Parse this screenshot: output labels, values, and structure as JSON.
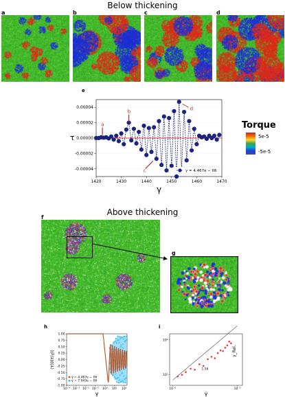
{
  "headings": {
    "below": "Below thickening",
    "above": "Above thickening"
  },
  "panel_labels": {
    "a": "a",
    "b": "b",
    "c": "c",
    "d": "d",
    "e": "e",
    "f": "f",
    "g": "g",
    "h": "h",
    "i": "i"
  },
  "colors": {
    "green": "#3cbf2a",
    "red": "#e02a1a",
    "blue": "#1e2fd8",
    "navy": "#1a237e",
    "orange": "#e87722",
    "cyan": "#29b6f6"
  },
  "colorbar": {
    "title": "Torque",
    "max_label": "5e-5",
    "min_label": "-5e-5"
  },
  "chart_data": [
    {
      "id": "e",
      "type": "line",
      "xlabel": "γ",
      "ylabel": "τ",
      "xlim": [
        1420,
        1470
      ],
      "ylim": [
        -5e-05,
        5e-05
      ],
      "xticks": [
        "1420",
        "1430",
        "1440",
        "1450",
        "1460",
        "1470"
      ],
      "yticks": [
        "0.00004",
        "0.00002",
        "0.00000",
        "-0.00002",
        "-0.00004"
      ],
      "legend": "γ = 4.467e − 06",
      "legend_position": "lower-right",
      "annotations": [
        {
          "text": "a",
          "x": 1422.5,
          "y": 3e-06
        },
        {
          "text": "b",
          "x": 1433,
          "y": 2e-05
        },
        {
          "text": "c",
          "x": 1441,
          "y": -2.8e-05
        },
        {
          "text": "d",
          "x": 1453.5,
          "y": 4.7e-05
        }
      ],
      "series": [
        {
          "x": [
            1420,
            1421,
            1422,
            1423,
            1424,
            1425,
            1426,
            1427,
            1428,
            1429,
            1430,
            1431,
            1432,
            1433,
            1434,
            1435,
            1436,
            1437,
            1438,
            1439,
            1440,
            1441,
            1442,
            1443,
            1444,
            1445,
            1446,
            1447,
            1448,
            1449,
            1450,
            1451,
            1452,
            1453,
            1454,
            1455,
            1456,
            1457,
            1458,
            1459,
            1460,
            1461,
            1462,
            1463,
            1464,
            1465,
            1466,
            1467,
            1468,
            1469
          ],
          "y": [
            0.0,
            0.0,
            1e-06,
            5e-07,
            1e-06,
            -5e-07,
            2e-06,
            -2e-06,
            3e-06,
            -4e-06,
            6e-06,
            -8e-06,
            1.1e-05,
            2e-05,
            -3e-06,
            1.2e-05,
            -7e-06,
            8e-06,
            -1.5e-05,
            1.6e-05,
            -2.2e-05,
            1.3e-05,
            -1.8e-05,
            1.4e-05,
            -2.7e-05,
            2.2e-05,
            -3.5e-05,
            2.8e-05,
            -4.2e-05,
            2.6e-05,
            -3.6e-05,
            3.5e-05,
            -5e-05,
            4.7e-05,
            -4.1e-05,
            3.4e-05,
            -2.9e-05,
            2.2e-05,
            -1.6e-05,
            1.2e-05,
            -8e-06,
            3e-06,
            1e-06,
            2e-06,
            -1e-06,
            3e-06,
            0.0,
            3e-06,
            -2e-06,
            4e-06
          ]
        }
      ]
    },
    {
      "id": "h",
      "type": "line",
      "xlabel": "γ",
      "ylabel": "⟨τ(0)τ(γ)⟩",
      "yticks": [
        "1.00",
        "0.75",
        "0.50",
        "0.25",
        "0.00",
        "-0.25",
        "-0.50",
        "-0.75",
        "-1.00"
      ],
      "xticks": [
        "10⁻⁴",
        "10⁻³",
        "10⁻²",
        "10⁻¹",
        "10⁰",
        "10¹",
        "10²"
      ],
      "ylim": [
        -1.0,
        1.0
      ],
      "legend_position": "lower-left",
      "series": [
        {
          "name": "γ̇ = 4.467e − 06",
          "x": [
            0.0001,
            0.001,
            0.01,
            0.1,
            1,
            3,
            10,
            30,
            100
          ],
          "y": [
            1.0,
            1.0,
            1.0,
            1.0,
            0.9,
            -0.6,
            0.5,
            -0.8,
            0.7
          ]
        },
        {
          "name": "γ̇ = 7.943e − 06",
          "x": [
            0.0001,
            0.001,
            0.01,
            0.1,
            1,
            3,
            10,
            30,
            100
          ],
          "y": [
            1.0,
            1.0,
            1.0,
            1.0,
            0.92,
            -0.55,
            0.45,
            -0.75,
            0.65
          ]
        }
      ]
    },
    {
      "id": "i",
      "type": "scatter",
      "xlabel": "γ̇",
      "ylabel": "γ_Rel.",
      "scale": "log-log",
      "xticks": [
        "10⁻⁶",
        "10⁻⁵"
      ],
      "yticks": [
        "10¹",
        "10²"
      ],
      "annotations": [
        {
          "text": "1.56"
        }
      ],
      "series": [
        {
          "x": [
            1.2e-06,
            1.4e-06,
            1.6e-06,
            1.9e-06,
            2.2e-06,
            2.6e-06,
            3e-06,
            3.5e-06,
            4e-06,
            4.5e-06,
            5e-06,
            5.5e-06,
            6e-06,
            6.5e-06,
            7e-06,
            7.5e-06,
            8e-06
          ],
          "y": [
            9,
            10,
            12,
            15,
            14,
            20,
            18,
            28,
            33,
            30,
            42,
            50,
            48,
            60,
            70,
            90,
            80
          ]
        }
      ]
    }
  ]
}
